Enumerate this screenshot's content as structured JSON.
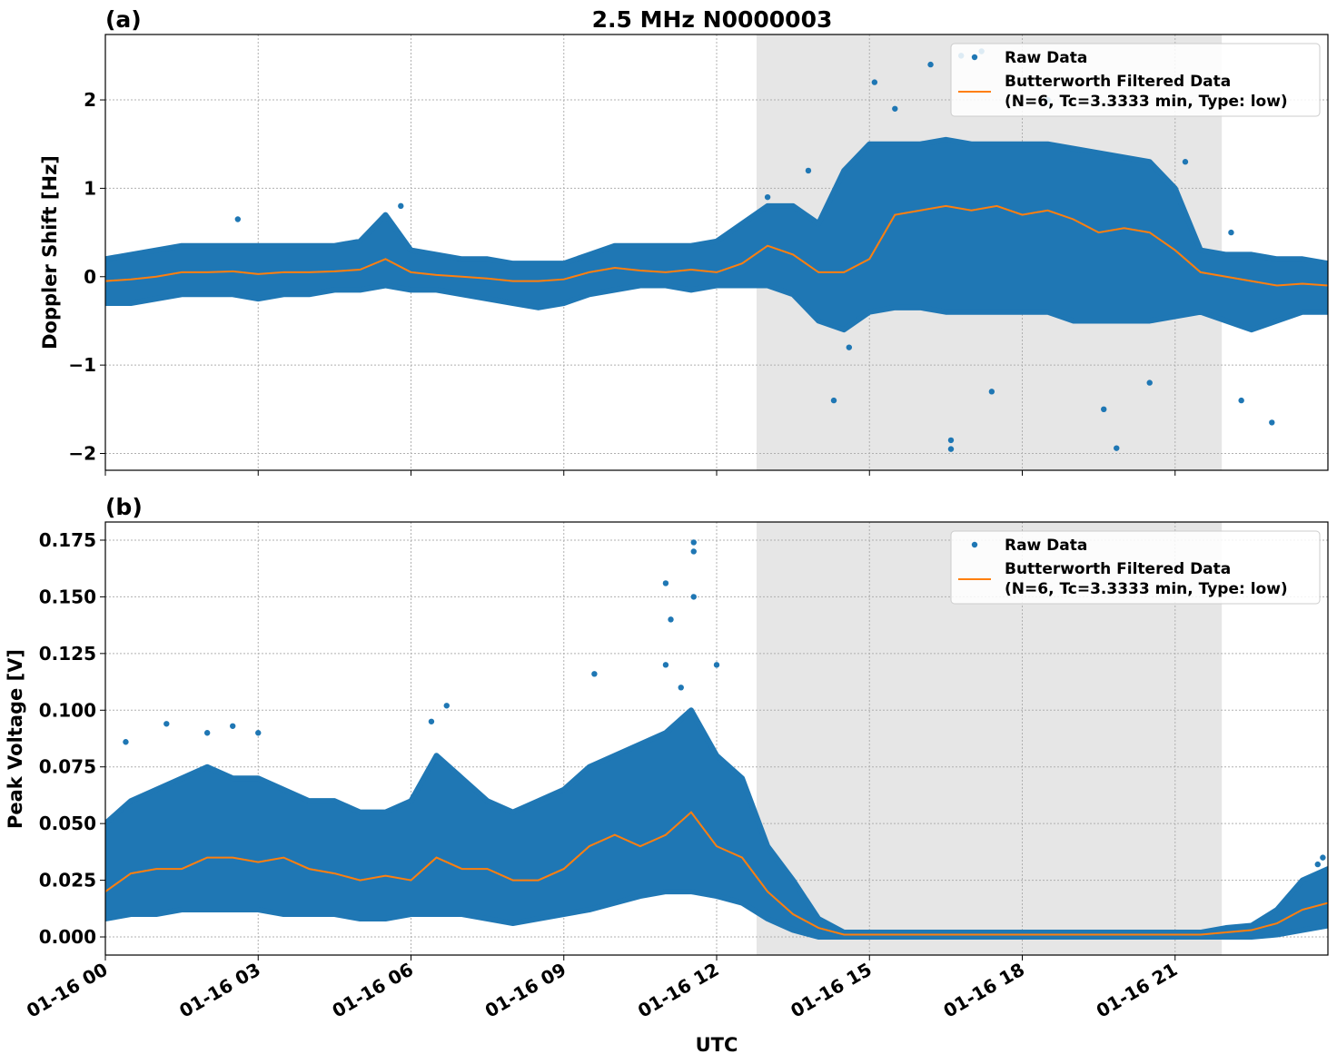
{
  "chart_data": [
    {
      "type": "scatter",
      "panel_label": "(a)",
      "title": "2.5 MHz N0000003",
      "xlabel": "",
      "ylabel": "Doppler Shift [Hz]",
      "ylim": [
        -2.19,
        2.74
      ],
      "yticks": [
        -2,
        -1,
        0,
        1,
        2
      ],
      "ytick_labels": [
        "−2",
        "−1",
        "0",
        "1",
        "2"
      ],
      "grid": true,
      "shaded_interval": [
        "01-16 12:47",
        "01-16 21:55"
      ],
      "legend_position": "top-right",
      "x": [
        "01-16 00:00",
        "01-16 00:30",
        "01-16 01:00",
        "01-16 01:30",
        "01-16 02:00",
        "01-16 02:30",
        "01-16 03:00",
        "01-16 03:30",
        "01-16 04:00",
        "01-16 04:30",
        "01-16 05:00",
        "01-16 05:30",
        "01-16 06:00",
        "01-16 06:30",
        "01-16 07:00",
        "01-16 07:30",
        "01-16 08:00",
        "01-16 08:30",
        "01-16 09:00",
        "01-16 09:30",
        "01-16 10:00",
        "01-16 10:30",
        "01-16 11:00",
        "01-16 11:30",
        "01-16 12:00",
        "01-16 12:30",
        "01-16 13:00",
        "01-16 13:30",
        "01-16 14:00",
        "01-16 14:30",
        "01-16 15:00",
        "01-16 15:30",
        "01-16 16:00",
        "01-16 16:30",
        "01-16 17:00",
        "01-16 17:30",
        "01-16 18:00",
        "01-16 18:30",
        "01-16 19:00",
        "01-16 19:30",
        "01-16 20:00",
        "01-16 20:30",
        "01-16 21:00",
        "01-16 21:30",
        "01-16 22:00",
        "01-16 22:30",
        "01-16 23:00",
        "01-16 23:30",
        "01-17 00:00"
      ],
      "series": [
        {
          "name": "Raw Data",
          "style": "points",
          "color": "#1f77b4",
          "band_upper": [
            0.2,
            0.25,
            0.3,
            0.35,
            0.35,
            0.35,
            0.35,
            0.35,
            0.35,
            0.35,
            0.4,
            0.7,
            0.3,
            0.25,
            0.2,
            0.2,
            0.15,
            0.15,
            0.15,
            0.25,
            0.35,
            0.35,
            0.35,
            0.35,
            0.4,
            0.6,
            0.8,
            0.8,
            0.6,
            1.2,
            1.5,
            1.5,
            1.5,
            1.55,
            1.5,
            1.5,
            1.5,
            1.5,
            1.45,
            1.4,
            1.35,
            1.3,
            1.0,
            0.3,
            0.25,
            0.25,
            0.2,
            0.2,
            0.15
          ],
          "band_lower": [
            -0.3,
            -0.3,
            -0.25,
            -0.2,
            -0.2,
            -0.2,
            -0.25,
            -0.2,
            -0.2,
            -0.15,
            -0.15,
            -0.1,
            -0.15,
            -0.15,
            -0.2,
            -0.25,
            -0.3,
            -0.35,
            -0.3,
            -0.2,
            -0.15,
            -0.1,
            -0.1,
            -0.15,
            -0.1,
            -0.1,
            -0.1,
            -0.2,
            -0.5,
            -0.6,
            -0.4,
            -0.35,
            -0.35,
            -0.4,
            -0.4,
            -0.4,
            -0.4,
            -0.4,
            -0.5,
            -0.5,
            -0.5,
            -0.5,
            -0.45,
            -0.4,
            -0.5,
            -0.6,
            -0.5,
            -0.4,
            -0.4
          ],
          "outliers": [
            [
              "01-16 16:36",
              -1.95
            ],
            [
              "01-16 16:36",
              -1.85
            ],
            [
              "01-16 19:51",
              -1.94
            ],
            [
              "01-16 22:54",
              -1.65
            ],
            [
              "01-16 16:12",
              2.4
            ],
            [
              "01-16 16:48",
              2.5
            ],
            [
              "01-16 17:12",
              2.55
            ],
            [
              "01-16 15:06",
              2.2
            ],
            [
              "01-16 05:48",
              0.8
            ],
            [
              "01-16 02:36",
              0.65
            ],
            [
              "01-16 14:18",
              -1.4
            ],
            [
              "01-16 17:24",
              -1.3
            ],
            [
              "01-16 19:36",
              -1.5
            ],
            [
              "01-16 22:18",
              -1.4
            ],
            [
              "01-16 13:48",
              1.2
            ],
            [
              "01-16 22:06",
              0.5
            ],
            [
              "01-16 14:36",
              -0.8
            ],
            [
              "01-16 20:30",
              -1.2
            ],
            [
              "01-16 15:30",
              1.9
            ],
            [
              "01-16 18:30",
              2.0
            ],
            [
              "01-16 21:12",
              1.3
            ],
            [
              "01-16 13:00",
              0.9
            ]
          ]
        },
        {
          "name": "Butterworth Filtered Data\n(N=6, Tc=3.3333 min, Type: low)",
          "style": "line",
          "color": "#ff7f0e",
          "values": [
            -0.05,
            -0.03,
            0.0,
            0.05,
            0.05,
            0.06,
            0.03,
            0.05,
            0.05,
            0.06,
            0.08,
            0.2,
            0.05,
            0.02,
            0.0,
            -0.02,
            -0.05,
            -0.05,
            -0.03,
            0.05,
            0.1,
            0.07,
            0.05,
            0.08,
            0.05,
            0.15,
            0.35,
            0.25,
            0.05,
            0.05,
            0.2,
            0.7,
            0.75,
            0.8,
            0.75,
            0.8,
            0.7,
            0.75,
            0.65,
            0.5,
            0.55,
            0.5,
            0.3,
            0.05,
            0.0,
            -0.05,
            -0.1,
            -0.08,
            -0.1
          ]
        }
      ],
      "legend": [
        "Raw Data",
        "Butterworth Filtered Data",
        "(N=6, Tc=3.3333 min, Type: low)"
      ]
    },
    {
      "type": "scatter",
      "panel_label": "(b)",
      "xlabel": "UTC",
      "ylabel": "Peak Voltage [V]",
      "ylim": [
        -0.008,
        0.183
      ],
      "yticks": [
        0,
        0.025,
        0.05,
        0.075,
        0.1,
        0.125,
        0.15,
        0.175
      ],
      "ytick_labels": [
        "0.000",
        "0.025",
        "0.050",
        "0.075",
        "0.100",
        "0.125",
        "0.150",
        "0.175"
      ],
      "xticks": [
        "01-16 00:00",
        "01-16 03:00",
        "01-16 06:00",
        "01-16 09:00",
        "01-16 12:00",
        "01-16 15:00",
        "01-16 18:00",
        "01-16 21:00"
      ],
      "xtick_labels": [
        "01-16 00",
        "01-16 03",
        "01-16 06",
        "01-16 09",
        "01-16 12",
        "01-16 15",
        "01-16 18",
        "01-16 21"
      ],
      "grid": true,
      "shaded_interval": [
        "01-16 12:47",
        "01-16 21:55"
      ],
      "legend_position": "top-right",
      "series": [
        {
          "name": "Raw Data",
          "style": "points",
          "color": "#1f77b4",
          "band_upper": [
            0.05,
            0.06,
            0.065,
            0.07,
            0.075,
            0.07,
            0.07,
            0.065,
            0.06,
            0.06,
            0.055,
            0.055,
            0.06,
            0.08,
            0.07,
            0.06,
            0.055,
            0.06,
            0.065,
            0.075,
            0.08,
            0.085,
            0.09,
            0.1,
            0.08,
            0.07,
            0.04,
            0.025,
            0.008,
            0.002,
            0.002,
            0.002,
            0.002,
            0.002,
            0.002,
            0.002,
            0.002,
            0.002,
            0.002,
            0.002,
            0.002,
            0.002,
            0.002,
            0.002,
            0.004,
            0.005,
            0.012,
            0.025,
            0.03
          ],
          "band_lower": [
            0.008,
            0.01,
            0.01,
            0.012,
            0.012,
            0.012,
            0.012,
            0.01,
            0.01,
            0.01,
            0.008,
            0.008,
            0.01,
            0.01,
            0.01,
            0.008,
            0.006,
            0.008,
            0.01,
            0.012,
            0.015,
            0.018,
            0.02,
            0.02,
            0.018,
            0.015,
            0.008,
            0.003,
            0.0,
            0.0,
            0.0,
            0.0,
            0.0,
            0.0,
            0.0,
            0.0,
            0.0,
            0.0,
            0.0,
            0.0,
            0.0,
            0.0,
            0.0,
            0.0,
            0.0,
            0.0,
            0.001,
            0.003,
            0.005
          ],
          "outliers": [
            [
              "01-16 11:33",
              0.174
            ],
            [
              "01-16 11:33",
              0.17
            ],
            [
              "01-16 11:00",
              0.156
            ],
            [
              "01-16 11:33",
              0.15
            ],
            [
              "01-16 11:06",
              0.14
            ],
            [
              "01-16 11:18",
              0.11
            ],
            [
              "01-16 11:00",
              0.12
            ],
            [
              "01-16 12:00",
              0.12
            ],
            [
              "01-16 09:36",
              0.116
            ],
            [
              "01-16 06:42",
              0.102
            ],
            [
              "01-16 06:24",
              0.095
            ],
            [
              "01-16 01:12",
              0.094
            ],
            [
              "01-16 02:30",
              0.093
            ],
            [
              "01-16 00:24",
              0.086
            ],
            [
              "01-16 02:00",
              0.09
            ],
            [
              "01-16 03:00",
              0.09
            ],
            [
              "01-16 23:54",
              0.035
            ],
            [
              "01-16 23:48",
              0.032
            ]
          ]
        },
        {
          "name": "Butterworth Filtered Data\n(N=6, Tc=3.3333 min, Type: low)",
          "style": "line",
          "color": "#ff7f0e",
          "values": [
            0.02,
            0.028,
            0.03,
            0.03,
            0.035,
            0.035,
            0.033,
            0.035,
            0.03,
            0.028,
            0.025,
            0.027,
            0.025,
            0.035,
            0.03,
            0.03,
            0.025,
            0.025,
            0.03,
            0.04,
            0.045,
            0.04,
            0.045,
            0.055,
            0.04,
            0.035,
            0.02,
            0.01,
            0.004,
            0.001,
            0.001,
            0.001,
            0.001,
            0.001,
            0.001,
            0.001,
            0.001,
            0.001,
            0.001,
            0.001,
            0.001,
            0.001,
            0.001,
            0.001,
            0.002,
            0.003,
            0.006,
            0.012,
            0.015
          ]
        }
      ],
      "legend": [
        "Raw Data",
        "Butterworth Filtered Data",
        "(N=6, Tc=3.3333 min, Type: low)"
      ]
    }
  ]
}
